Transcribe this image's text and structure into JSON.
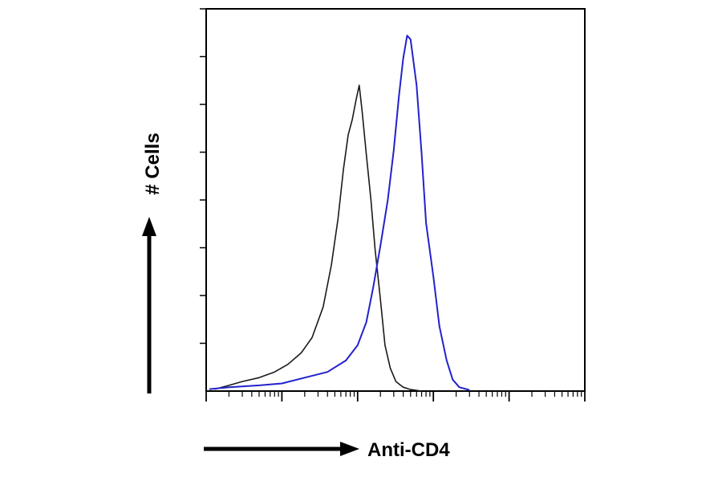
{
  "chart_data": {
    "type": "line",
    "title": "",
    "xlabel": "Anti-CD4",
    "ylabel": "# Cells",
    "x_scale": "log",
    "xlim": [
      1,
      100000
    ],
    "ylim": [
      0,
      100
    ],
    "grid": false,
    "series": [
      {
        "color": "#1a1a1a",
        "x": [
          1.3,
          2,
          3,
          5,
          8,
          12,
          18,
          25,
          35,
          45,
          55,
          65,
          75,
          85,
          95,
          105,
          115,
          130,
          150,
          170,
          200,
          230,
          270,
          320,
          400,
          500,
          700
        ],
        "y": [
          0.5,
          1.5,
          2.5,
          3.5,
          5,
          7,
          10,
          14,
          22,
          33,
          45,
          58,
          67,
          71,
          76,
          80,
          73,
          62,
          50,
          37,
          24,
          12,
          6,
          2.5,
          1,
          0.4,
          0
        ]
      },
      {
        "color": "#2222cc",
        "x": [
          1.1,
          2,
          5,
          10,
          20,
          40,
          70,
          100,
          130,
          160,
          200,
          250,
          300,
          350,
          400,
          450,
          500,
          600,
          700,
          800,
          1000,
          1200,
          1500,
          1800,
          2200,
          3000
        ],
        "y": [
          0.5,
          1,
          1.5,
          2,
          3.5,
          5,
          8,
          12,
          18,
          27,
          38,
          50,
          63,
          77,
          87,
          93,
          92,
          80,
          62,
          44,
          30,
          17,
          8,
          3,
          1,
          0.3
        ]
      }
    ]
  }
}
